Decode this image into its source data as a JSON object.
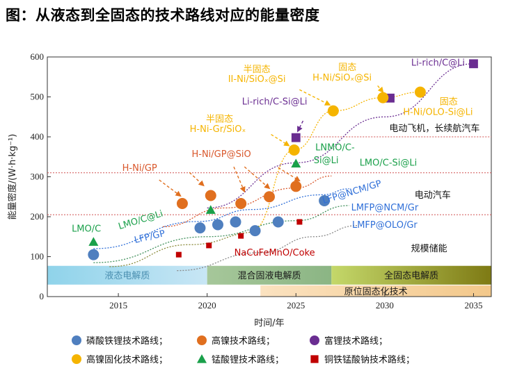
{
  "page_title": "图：从液态到全固态的技术路线对应的能量密度",
  "chart_data": {
    "type": "scatter",
    "xlabel": "时间/年",
    "ylabel": "能量密度/(W·h·kg⁻¹)",
    "xlim": [
      2011,
      2036
    ],
    "ylim": [
      0,
      600
    ],
    "x_ticks": [
      "2015",
      "2020",
      "2025",
      "2030",
      "2035"
    ],
    "y_ticks": [
      "0",
      "100",
      "200",
      "300",
      "400",
      "500",
      "600"
    ],
    "grid": false,
    "legend_placement": "bottom",
    "colors": {
      "lfp": "#4f7fbf",
      "ni": "#e06f1f",
      "li_rich": "#6a2d91",
      "solid_ni": "#f5b400",
      "lmo": "#1aa04a",
      "nacu": "#c00000"
    },
    "series": [
      {
        "name": "磷酸铁锂技术路线",
        "marker": "circle",
        "color": "#4f7fbf",
        "points": [
          [
            2013.6,
            105
          ],
          [
            2019.6,
            172
          ],
          [
            2020.6,
            180
          ],
          [
            2021.6,
            187
          ],
          [
            2022.7,
            165
          ],
          [
            2024,
            187
          ],
          [
            2026.6,
            240
          ]
        ]
      },
      {
        "name": "高镍技术路线",
        "marker": "circle",
        "color": "#e06f1f",
        "points": [
          [
            2018.6,
            233
          ],
          [
            2020.2,
            253
          ],
          [
            2021.9,
            233
          ],
          [
            2023.5,
            250
          ],
          [
            2025,
            276
          ]
        ]
      },
      {
        "name": "富锂技术路线",
        "marker": "square",
        "color": "#6a2d91",
        "points": [
          [
            2025,
            398
          ],
          [
            2030.3,
            497
          ],
          [
            2035,
            583
          ]
        ]
      },
      {
        "name": "高镍固化技术路线",
        "marker": "circle",
        "color": "#f5b400",
        "points": [
          [
            2024.9,
            367
          ],
          [
            2027.1,
            465
          ],
          [
            2029.9,
            498
          ],
          [
            2032,
            512
          ]
        ]
      },
      {
        "name": "锰酸锂技术路线",
        "marker": "triangle",
        "color": "#1aa04a",
        "points": [
          [
            2013.6,
            137
          ],
          [
            2020.2,
            217
          ],
          [
            2025,
            333
          ]
        ]
      },
      {
        "name": "铜铁锰酸钠技术路线",
        "marker": "square",
        "color": "#c00000",
        "points": [
          [
            2018.4,
            105
          ],
          [
            2020.1,
            128
          ],
          [
            2021.9,
            152
          ],
          [
            2025.2,
            187
          ]
        ]
      }
    ],
    "trend_lines": [
      {
        "color": "#3f8f5a",
        "points": [
          [
            2013.6,
            85
          ],
          [
            2020,
            150
          ],
          [
            2025,
            190
          ],
          [
            2028,
            228
          ]
        ]
      },
      {
        "color": "#2f6fd8",
        "points": [
          [
            2013.6,
            120
          ],
          [
            2019.5,
            188
          ],
          [
            2022.5,
            218
          ],
          [
            2026.5,
            255
          ],
          [
            2028,
            270
          ]
        ]
      },
      {
        "color": "#d9572b",
        "points": [
          [
            2017.5,
            175
          ],
          [
            2021,
            222
          ],
          [
            2025,
            272
          ],
          [
            2027,
            302
          ]
        ]
      },
      {
        "color": "#6a2d91",
        "points": [
          [
            2020,
            222
          ],
          [
            2025,
            335
          ],
          [
            2030,
            450
          ],
          [
            2035,
            583
          ]
        ]
      },
      {
        "color": "#f5b400",
        "points": [
          [
            2022.5,
            165
          ],
          [
            2024.9,
            367
          ],
          [
            2027.1,
            465
          ],
          [
            2029.9,
            498
          ],
          [
            2032,
            512
          ]
        ]
      },
      {
        "color": "#888888",
        "points": [
          [
            2018.3,
            65
          ],
          [
            2023,
            110
          ],
          [
            2026,
            150
          ],
          [
            2028.5,
            178
          ]
        ]
      },
      {
        "color": "#8a8a3a",
        "points": [
          [
            2014.5,
            75
          ],
          [
            2019,
            130
          ],
          [
            2023,
            162
          ]
        ]
      }
    ],
    "hlines": [
      {
        "y": 310,
        "color": "#d05050"
      },
      {
        "y": 205,
        "color": "#d05050"
      },
      {
        "y": 400,
        "color": "#d05050",
        "xmin": 2025
      }
    ],
    "bands": [
      {
        "label": "液态电解质",
        "x0": 2011,
        "x1": 2020,
        "y0": 30,
        "y1": 77,
        "from": "#8fd3ea",
        "to": "#c8e6f5",
        "text_color": "#4a8fb0"
      },
      {
        "label": "混合固液电解质",
        "x0": 2020,
        "x1": 2027,
        "y0": 30,
        "y1": 77,
        "from": "#a6c79a",
        "to": "#8bb584",
        "text_color": "#1a1a1a"
      },
      {
        "label": "全固态电解质",
        "x0": 2027,
        "x1": 2036,
        "y0": 30,
        "y1": 77,
        "from": "#c4d86a",
        "to": "#7e7a14",
        "text_color": "#1a1a1a"
      },
      {
        "label": "原位固态化技术",
        "x0": 2023,
        "x1": 2036,
        "y0": 0,
        "y1": 28,
        "from": "#fbe2c0",
        "to": "#f3c88a",
        "text_color": "#1a1a1a"
      }
    ],
    "annotations": [
      {
        "text": "LMO/C",
        "x": 2013.2,
        "y": 163,
        "color": "#1aa04a"
      },
      {
        "text": "LMO/C@Li",
        "x": 2016.3,
        "y": 185,
        "color": "#1aa04a",
        "rotate": -17
      },
      {
        "text": "LFP/GP",
        "x": 2016.8,
        "y": 143,
        "color": "#2f6fd8",
        "rotate": -13
      },
      {
        "text": "H-Ni/GP",
        "x": 2016.2,
        "y": 315,
        "color": "#d9572b"
      },
      {
        "text": "H-Ni/GP@SiO",
        "x": 2020.8,
        "y": 350,
        "color": "#d9572b"
      },
      {
        "text": "半固态",
        "x": 2020.7,
        "y": 437,
        "color": "#f5b400"
      },
      {
        "text": "H-Ni-Gr/SiOₓ",
        "x": 2020.6,
        "y": 412,
        "color": "#f5b400"
      },
      {
        "text": "半固态",
        "x": 2022.8,
        "y": 562,
        "color": "#f5b400"
      },
      {
        "text": "II-Ni/SiOₓ@Si",
        "x": 2022.8,
        "y": 537,
        "color": "#f5b400"
      },
      {
        "text": "固态",
        "x": 2027.9,
        "y": 567,
        "color": "#f5b400"
      },
      {
        "text": "H-Ni/SiOₓ@Si",
        "x": 2027.6,
        "y": 541,
        "color": "#f5b400"
      },
      {
        "text": "Li-rich/C@Li",
        "x": 2033,
        "y": 578,
        "color": "#6a2d91"
      },
      {
        "text": "Li-rich/C-Si@Li",
        "x": 2023.8,
        "y": 481,
        "color": "#6a2d91"
      },
      {
        "text": "固态",
        "x": 2033.6,
        "y": 481,
        "color": "#f5b400"
      },
      {
        "text": "H-Ni/OLO-Si@Li",
        "x": 2033,
        "y": 455,
        "color": "#f5b400"
      },
      {
        "text": "电动飞机，长续航汽车",
        "x": 2032.8,
        "y": 414,
        "color": "#111111"
      },
      {
        "text": "LNMO/C-",
        "x": 2027.2,
        "y": 366,
        "color": "#1aa04a"
      },
      {
        "text": "Si@Li",
        "x": 2026.7,
        "y": 334,
        "color": "#1aa04a"
      },
      {
        "text": "LMO/C-Si@Li",
        "x": 2030.2,
        "y": 328,
        "color": "#1aa04a"
      },
      {
        "text": "LFP@NCM/GP",
        "x": 2028.2,
        "y": 255,
        "color": "#2f6fd8",
        "rotate": -17
      },
      {
        "text": "电动汽车",
        "x": 2032.7,
        "y": 247,
        "color": "#111111"
      },
      {
        "text": "LMFP@NCM/Gr",
        "x": 2030,
        "y": 216,
        "color": "#2f6fd8"
      },
      {
        "text": "LMFP@OLO/Gr",
        "x": 2030,
        "y": 172,
        "color": "#2f6fd8"
      },
      {
        "text": "NaCuFeMnO/Coke",
        "x": 2023.8,
        "y": 103,
        "color": "#c00000"
      },
      {
        "text": "规模储能",
        "x": 2032.5,
        "y": 113,
        "color": "#111111"
      }
    ],
    "arrows": [
      {
        "color": "#e06f1f",
        "from": [
          2017.3,
          292
        ],
        "to": [
          2018.5,
          252
        ]
      },
      {
        "color": "#e06f1f",
        "from": [
          2021.5,
          325
        ],
        "to": [
          2022.1,
          263
        ]
      },
      {
        "color": "#e06f1f",
        "from": [
          2022.1,
          325
        ],
        "to": [
          2023.5,
          271
        ]
      },
      {
        "color": "#e06f1f",
        "from": [
          2024,
          323
        ],
        "to": [
          2025.2,
          290
        ]
      },
      {
        "color": "#e06f1f",
        "from": [
          2019,
          311
        ],
        "to": [
          2019.8,
          278
        ]
      },
      {
        "color": "#f5b400",
        "from": [
          2023.6,
          406
        ],
        "to": [
          2024.6,
          378
        ]
      },
      {
        "color": "#f5b400",
        "from": [
          2025.2,
          518
        ],
        "to": [
          2026.9,
          480
        ]
      },
      {
        "color": "#f5b400",
        "from": [
          2029.6,
          528
        ],
        "to": [
          2029.9,
          512
        ]
      },
      {
        "color": "#6a2d91",
        "from": [
          2025.4,
          440
        ],
        "to": [
          2025.1,
          414
        ]
      }
    ]
  },
  "legend": [
    {
      "label": "磷酸铁锂技术路线；",
      "marker": "circle",
      "color": "#4f7fbf"
    },
    {
      "label": "高镍技术路线；",
      "marker": "circle",
      "color": "#e06f1f"
    },
    {
      "label": "富锂技术路线；",
      "marker": "circle",
      "color": "#6a2d91"
    },
    {
      "label": "高镍固化技术路线；",
      "marker": "circle",
      "color": "#f5b400"
    },
    {
      "label": "锰酸锂技术路线；",
      "marker": "triangle",
      "color": "#1aa04a"
    },
    {
      "label": "铜铁锰酸钠技术路线；",
      "marker": "square",
      "color": "#c00000"
    }
  ]
}
